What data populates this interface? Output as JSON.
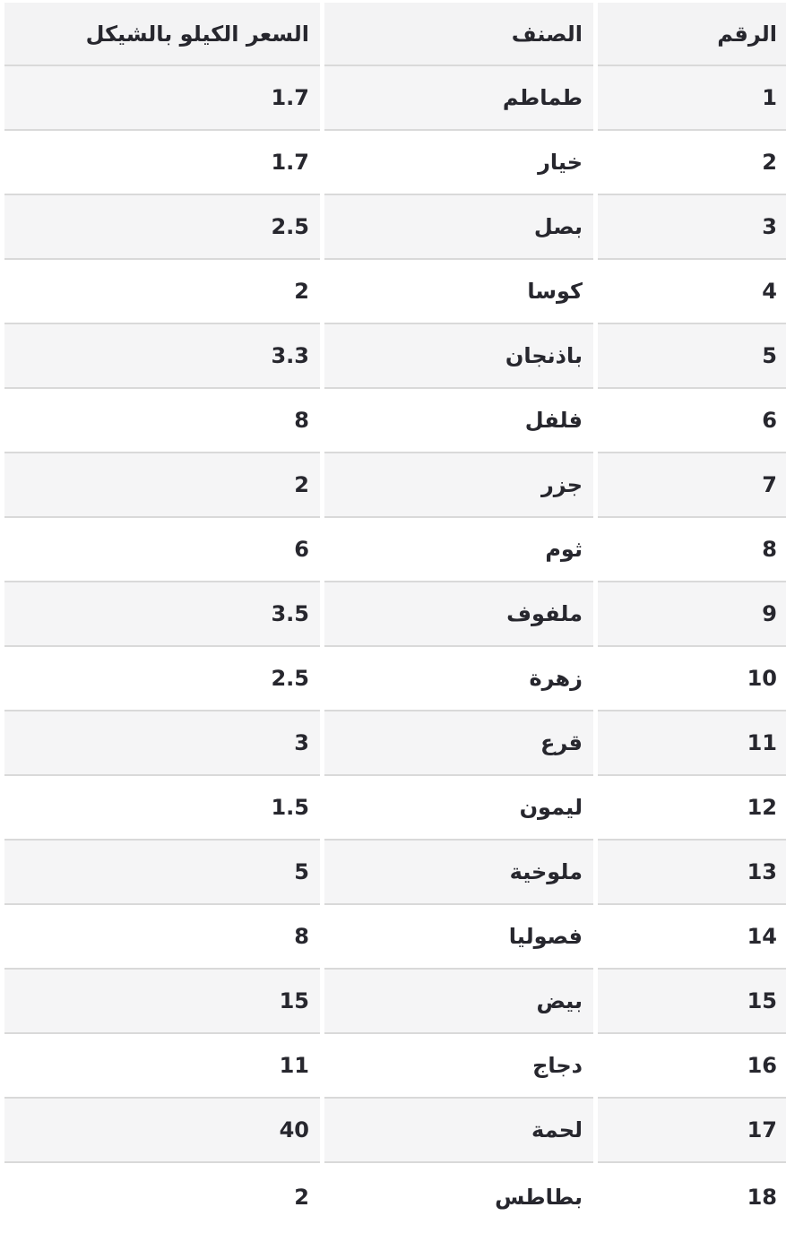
{
  "chart_data": {
    "type": "table",
    "direction": "rtl",
    "columns": [
      "الرقم",
      "الصنف",
      "السعر الكيلو بالشيكل"
    ],
    "column_keys": [
      "number",
      "item",
      "price"
    ],
    "rows": [
      {
        "number": "1",
        "item": "طماطم",
        "price": "1.7"
      },
      {
        "number": "2",
        "item": "خيار",
        "price": "1.7"
      },
      {
        "number": "3",
        "item": "بصل",
        "price": "2.5"
      },
      {
        "number": "4",
        "item": "كوسا",
        "price": "2"
      },
      {
        "number": "5",
        "item": "باذنجان",
        "price": "3.3"
      },
      {
        "number": "6",
        "item": "فلفل",
        "price": "8"
      },
      {
        "number": "7",
        "item": "جزر",
        "price": "2"
      },
      {
        "number": "8",
        "item": "ثوم",
        "price": "6"
      },
      {
        "number": "9",
        "item": "ملفوف",
        "price": "3.5"
      },
      {
        "number": "10",
        "item": "زهرة",
        "price": "2.5"
      },
      {
        "number": "11",
        "item": "قرع",
        "price": "3"
      },
      {
        "number": "12",
        "item": "ليمون",
        "price": "1.5"
      },
      {
        "number": "13",
        "item": "ملوخية",
        "price": "5"
      },
      {
        "number": "14",
        "item": "فصوليا",
        "price": "8"
      },
      {
        "number": "15",
        "item": "بيض",
        "price": "15"
      },
      {
        "number": "16",
        "item": "دجاج",
        "price": "11"
      },
      {
        "number": "17",
        "item": "لحمة",
        "price": "40"
      },
      {
        "number": "18",
        "item": "بطاطس",
        "price": "2"
      }
    ]
  },
  "colors": {
    "page_bg": "#ffffff",
    "header_bg": "#f3f3f4",
    "stripe_bg": "#f5f5f6",
    "row_bg": "#ffffff",
    "border": "#d9d9d9",
    "text": "#27272e"
  }
}
